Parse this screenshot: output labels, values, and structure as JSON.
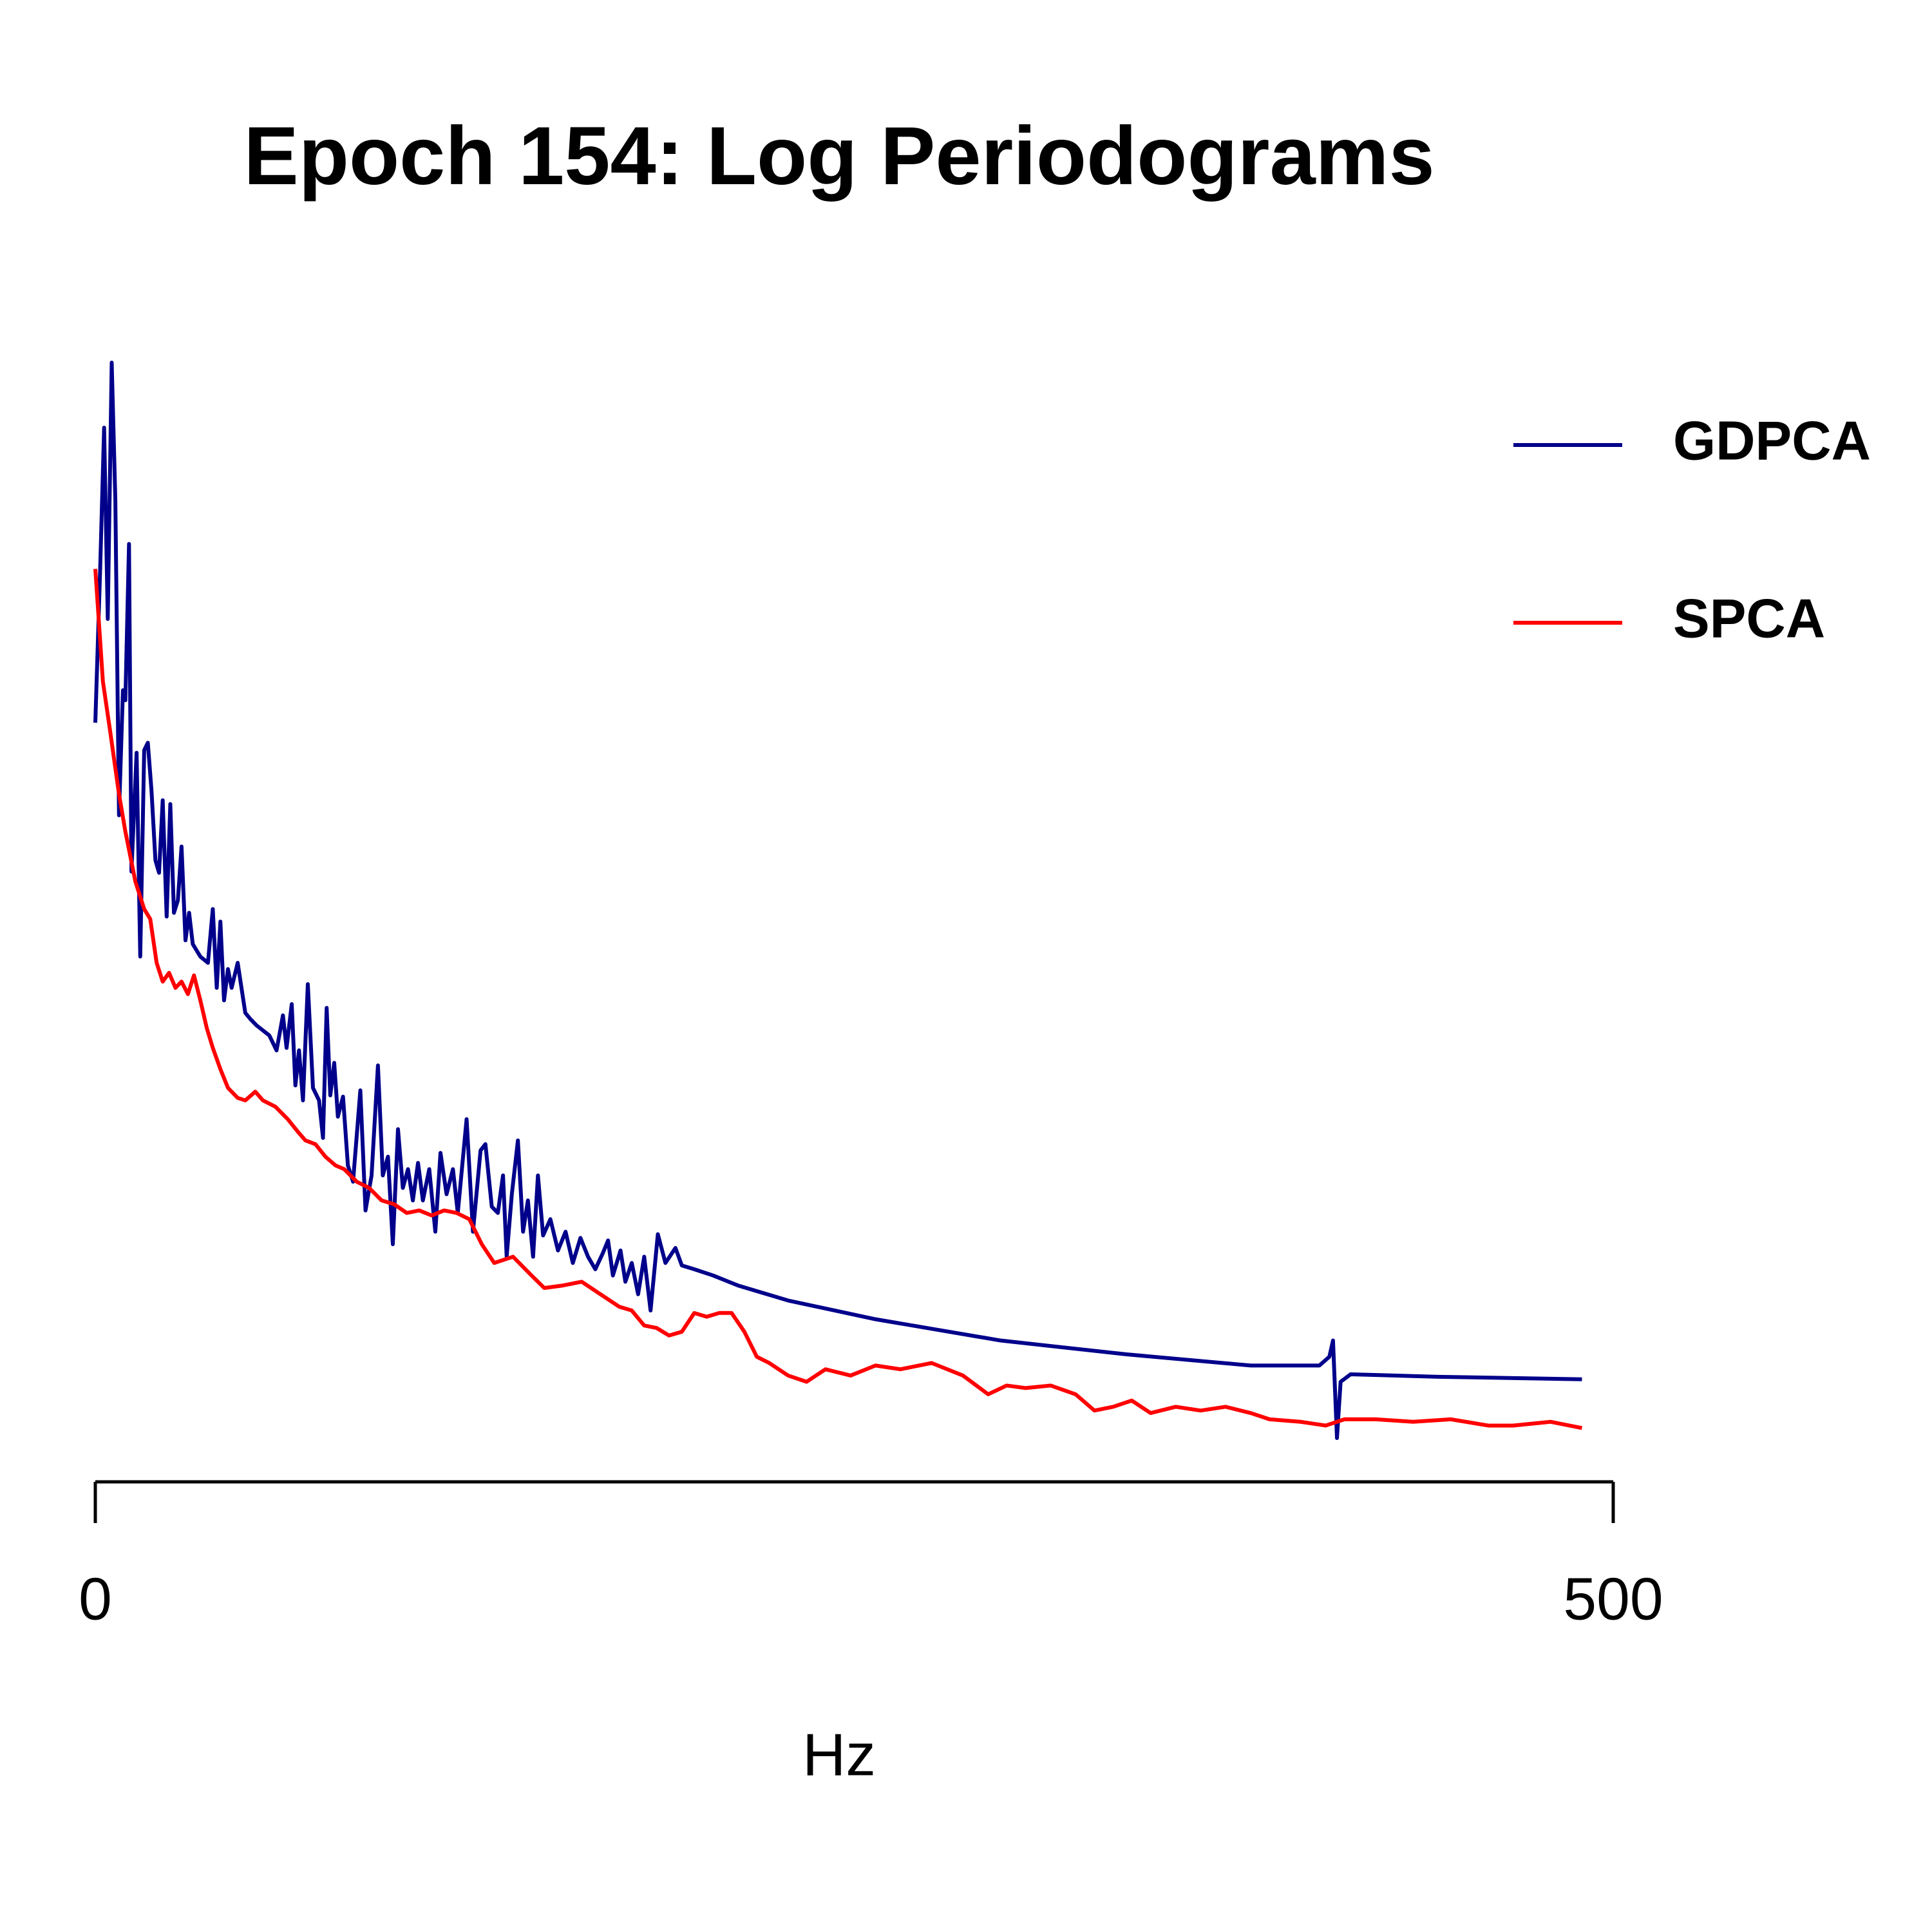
{
  "chart_data": {
    "type": "line",
    "title": "Epoch 154: Log Periodograms",
    "x_label": "Hz",
    "xlim": [
      0,
      500
    ],
    "xticks": [
      0,
      500
    ],
    "legend_position": "upper right",
    "series": [
      {
        "name": "GDPCA",
        "color": "#00008b",
        "x": [
          0,
          1.6,
          2.9,
          4.1,
          5.4,
          6.6,
          7.8,
          9.1,
          9.9,
          11.1,
          11.9,
          13.6,
          14.8,
          16.1,
          17.3,
          18.5,
          19.8,
          21.0,
          22.2,
          23.5,
          24.7,
          25.9,
          27.2,
          28.4,
          29.7,
          30.9,
          32.1,
          34.6,
          37.1,
          38.7,
          40.0,
          41.2,
          42.4,
          43.7,
          44.9,
          46.9,
          49.4,
          51.1,
          53.1,
          57.3,
          59.7,
          61.8,
          63.0,
          64.7,
          65.9,
          67.1,
          68.4,
          70.0,
          71.7,
          73.7,
          75.0,
          76.2,
          77.4,
          78.7,
          79.9,
          81.6,
          83.2,
          84.9,
          87.3,
          89.0,
          91.0,
          93.1,
          94.7,
          96.4,
          98.0,
          99.7,
          101.3,
          103.0,
          104.6,
          106.3,
          107.9,
          110.0,
          112.0,
          113.7,
          115.7,
          117.8,
          119.4,
          122.3,
          124.4,
          126.9,
          128.5,
          130.6,
          132.6,
          134.3,
          135.5,
          137.2,
          139.2,
          140.9,
          142.5,
          144.2,
          145.8,
          147.5,
          149.9,
          152.4,
          154.9,
          157.3,
          159.8,
          162.3,
          164.7,
          167.2,
          168.9,
          170.5,
          173.0,
          174.6,
          176.7,
          178.8,
          180.8,
          182.9,
          185.3,
          187.8,
          191.1,
          193.2,
          197.3,
          203.5,
          211.7,
          228.2,
          257.0,
          298.2,
          339.4,
          380.6,
          403.2,
          406.5,
          407.7,
          409.0,
          410.2,
          413.5,
          442.3,
          489.7
        ],
        "values": [
          62.2,
          74.5,
          85.8,
          70.5,
          91,
          80,
          54.8,
          64.8,
          64,
          76.5,
          50.3,
          59.8,
          43.5,
          60,
          60.6,
          56.8,
          51.2,
          50.2,
          56,
          46.7,
          55.7,
          47,
          48,
          52.3,
          44.8,
          47,
          44.5,
          43.5,
          43,
          47.3,
          41,
          46.3,
          40,
          42.5,
          41,
          43,
          39,
          38.5,
          38,
          37.2,
          36,
          38.8,
          36.2,
          39.7,
          33.2,
          36,
          32,
          41.3,
          33,
          32,
          29,
          39.4,
          32.4,
          35,
          30.7,
          32.3,
          26.8,
          25.5,
          32.8,
          23.2,
          26,
          34.8,
          26,
          27.5,
          20.5,
          29.7,
          25,
          26.5,
          24,
          27,
          24,
          26.5,
          21.5,
          27.8,
          24.5,
          26.5,
          23,
          30.5,
          21.5,
          28,
          28.5,
          23.5,
          23,
          26,
          19.5,
          24.5,
          28.8,
          21.5,
          24,
          19.5,
          26,
          21.2,
          22.5,
          20,
          21.5,
          19,
          21,
          19.5,
          18.5,
          19.8,
          20.8,
          18,
          20,
          17.5,
          19,
          16.5,
          19.5,
          15.2,
          21.3,
          19,
          20.2,
          18.8,
          18.5,
          18,
          17.2,
          16,
          14.5,
          12.8,
          11.7,
          10.8,
          10.8,
          11.5,
          12.8,
          5,
          9.5,
          10.1,
          9.9,
          9.7
        ]
      },
      {
        "name": "SPCA",
        "color": "#ff0000",
        "x": [
          0,
          2.5,
          4.9,
          7.8,
          9.9,
          13.2,
          16.1,
          18.1,
          20.2,
          22.2,
          24.3,
          26.4,
          28.4,
          30.5,
          32.5,
          34.6,
          36.7,
          38.7,
          41.2,
          43.7,
          46.9,
          49.4,
          52.7,
          55.2,
          59.3,
          63.4,
          66.7,
          69.2,
          72.5,
          75.8,
          79.1,
          82.0,
          86.1,
          90.2,
          94.3,
          98.4,
          102.6,
          106.7,
          110.8,
          114.9,
          119.0,
          123.2,
          127.3,
          131.4,
          137.6,
          143.7,
          147.9,
          154.0,
          160.2,
          166.4,
          172.6,
          176.7,
          180.8,
          184.9,
          189.0,
          193.2,
          197.3,
          201.4,
          205.5,
          209.6,
          213.8,
          217.9,
          222.0,
          228.2,
          234.3,
          240.5,
          248.8,
          257.0,
          265.2,
          275.5,
          285.8,
          294.1,
          300.2,
          306.4,
          314.7,
          322.9,
          329.1,
          335.3,
          341.4,
          347.6,
          355.9,
          364.1,
          372.3,
          380.6,
          386.8,
          397.0,
          405.3,
          411.5,
          421.8,
          434.1,
          446.5,
          458.8,
          467.0,
          479.4,
          489.7
        ],
        "values": [
          74.5,
          65.5,
          61.5,
          56.5,
          53.5,
          49.5,
          47.3,
          46.5,
          43,
          41.5,
          42.2,
          41,
          41.5,
          40.5,
          42,
          40,
          37.8,
          36.2,
          34.5,
          33,
          32.2,
          32,
          32.7,
          32,
          31.5,
          30.5,
          29.5,
          28.8,
          28.5,
          27.5,
          26.8,
          26.5,
          25.5,
          25,
          24,
          23.7,
          23,
          23.2,
          22.8,
          23.2,
          23,
          22.5,
          20.5,
          19,
          19.5,
          18,
          17,
          17.2,
          17.5,
          16.5,
          15.5,
          15.2,
          14,
          13.8,
          13.2,
          13.5,
          15,
          14.7,
          15,
          15,
          13.5,
          11.5,
          11,
          10,
          9.5,
          10.5,
          10,
          10.8,
          10.5,
          11,
          10,
          8.5,
          9.2,
          9,
          9.2,
          8.5,
          7.2,
          7.5,
          8,
          7,
          7.5,
          7.2,
          7.5,
          7,
          6.5,
          6.3,
          6,
          6.5,
          6.5,
          6.3,
          6.5,
          6,
          6,
          6.3,
          5.8
        ]
      }
    ]
  }
}
